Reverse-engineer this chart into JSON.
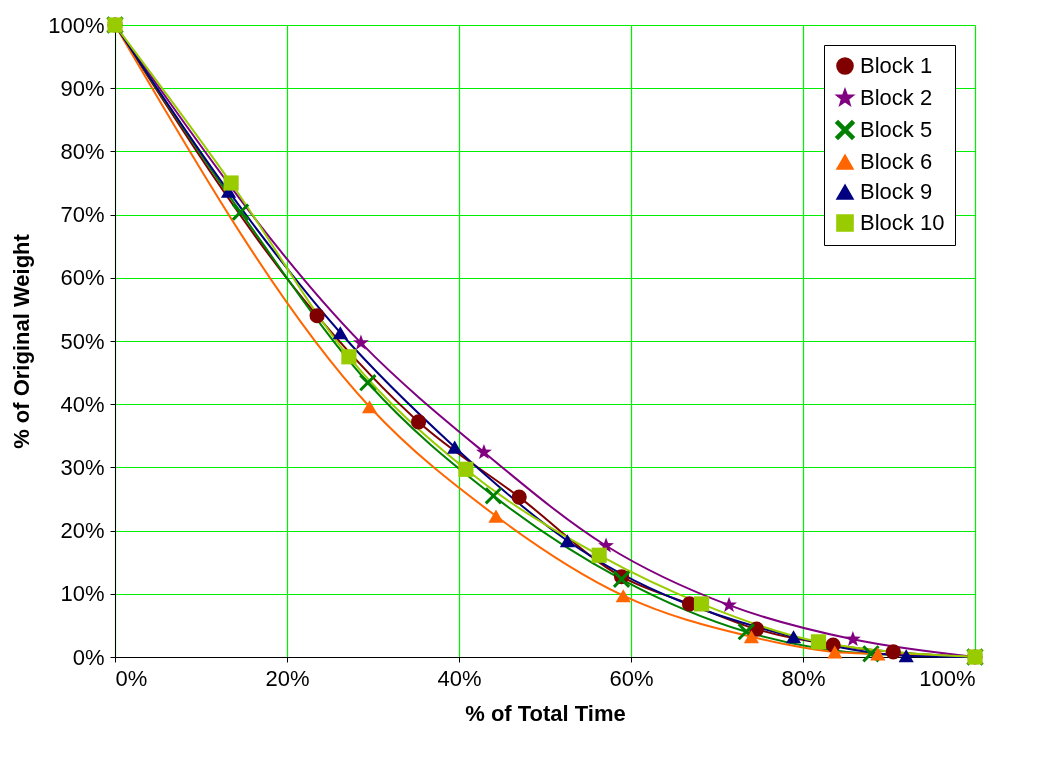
{
  "chart_data": {
    "type": "line",
    "xlabel": "% of Total Time",
    "ylabel": "% of Original Weight",
    "xlim": [
      0,
      100
    ],
    "ylim": [
      0,
      100
    ],
    "xticks": [
      {
        "value": 0,
        "label": "0%"
      },
      {
        "value": 20,
        "label": "20%"
      },
      {
        "value": 40,
        "label": "40%"
      },
      {
        "value": 60,
        "label": "60%"
      },
      {
        "value": 80,
        "label": "80%"
      },
      {
        "value": 100,
        "label": "100%"
      }
    ],
    "yticks": [
      {
        "value": 0,
        "label": "0%"
      },
      {
        "value": 10,
        "label": "10%"
      },
      {
        "value": 20,
        "label": "20%"
      },
      {
        "value": 30,
        "label": "30%"
      },
      {
        "value": 40,
        "label": "40%"
      },
      {
        "value": 50,
        "label": "50%"
      },
      {
        "value": 60,
        "label": "60%"
      },
      {
        "value": 70,
        "label": "70%"
      },
      {
        "value": 80,
        "label": "80%"
      },
      {
        "value": 90,
        "label": "90%"
      },
      {
        "value": 100,
        "label": "100%"
      }
    ],
    "grid": true,
    "legend": "top right",
    "line_style": "solid",
    "series": [
      {
        "name": "Block 1",
        "color": "#800000",
        "marker": "circle",
        "x": [
          0,
          23.5,
          35.3,
          47.0,
          58.9,
          66.8,
          74.6,
          83.5,
          90.5,
          100
        ],
        "values": [
          100,
          54.0,
          37.2,
          25.3,
          12.7,
          8.4,
          4.4,
          1.9,
          0.8,
          0
        ]
      },
      {
        "name": "Block 2",
        "color": "#800080",
        "marker": "star",
        "x": [
          0,
          28.6,
          42.9,
          57.1,
          71.4,
          85.8,
          100
        ],
        "values": [
          100,
          49.7,
          32.4,
          17.6,
          8.2,
          2.8,
          0
        ]
      },
      {
        "name": "Block 5",
        "color": "#008000",
        "marker": "cross",
        "x": [
          0,
          14.6,
          29.4,
          44.0,
          58.9,
          73.4,
          87.9,
          100
        ],
        "values": [
          100,
          70.4,
          43.4,
          25.5,
          12.3,
          4.0,
          0.5,
          0
        ]
      },
      {
        "name": "Block 6",
        "color": "#ff6600",
        "marker": "triangle",
        "x": [
          0,
          29.6,
          44.3,
          59.1,
          74.0,
          83.7,
          88.7,
          100
        ],
        "values": [
          100,
          39.6,
          22.3,
          9.7,
          3.2,
          0.8,
          0.5,
          0
        ]
      },
      {
        "name": "Block 9",
        "color": "#000080",
        "marker": "triangle",
        "x": [
          0,
          13.2,
          26.2,
          39.5,
          52.6,
          78.9,
          92.0,
          100
        ],
        "values": [
          100,
          73.7,
          51.3,
          33.2,
          18.4,
          3.2,
          0.2,
          0
        ]
      },
      {
        "name": "Block 10",
        "color": "#99cc00",
        "marker": "square",
        "x": [
          0,
          13.5,
          27.2,
          40.8,
          56.3,
          68.2,
          81.8,
          100
        ],
        "values": [
          100,
          75.0,
          47.5,
          29.7,
          16.1,
          8.4,
          2.4,
          0
        ]
      }
    ]
  }
}
